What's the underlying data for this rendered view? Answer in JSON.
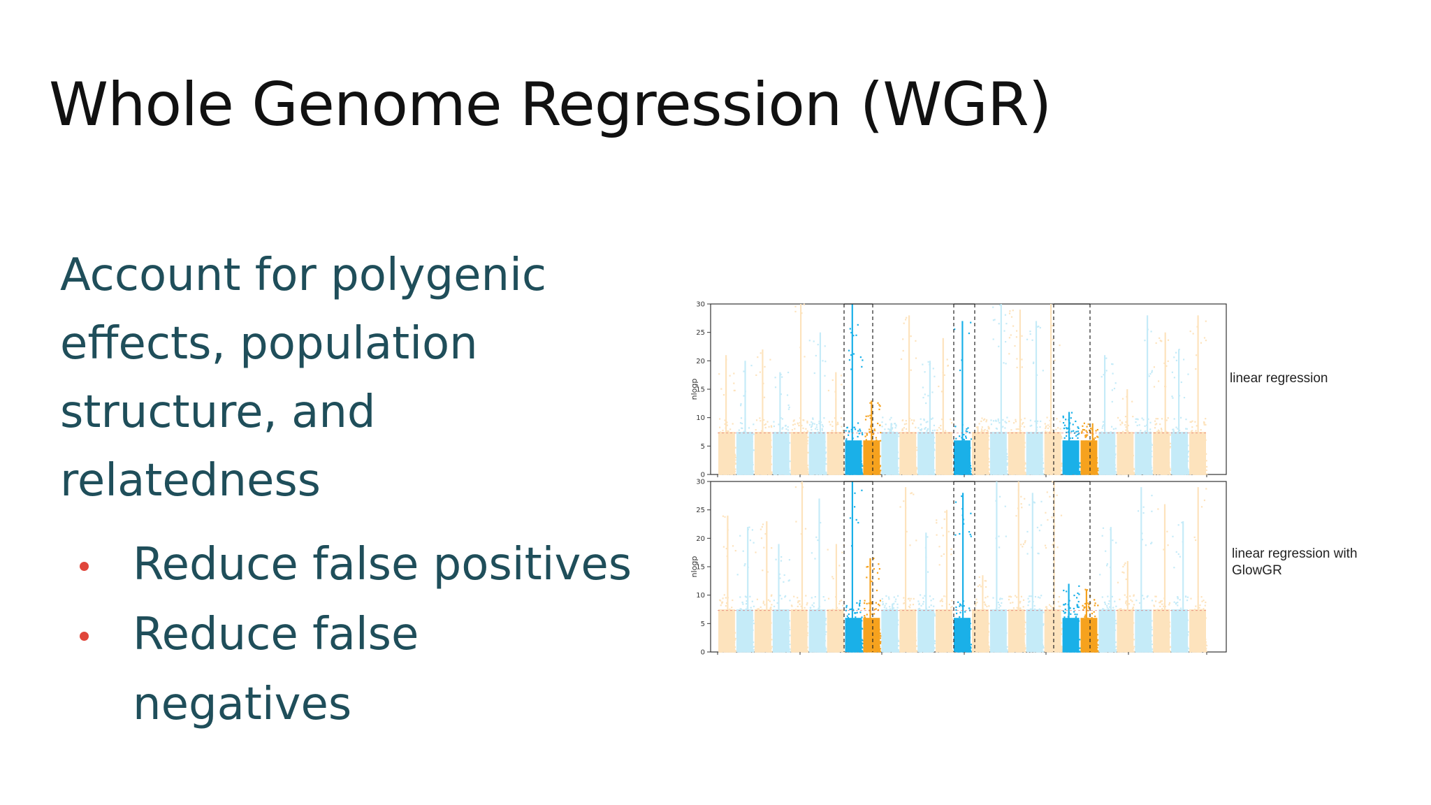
{
  "slide": {
    "title": "Whole Genome Regression (WGR)",
    "body_lines": [
      "Account for polygenic",
      "effects, population",
      "structure, and",
      "relatedness"
    ],
    "bullets": [
      {
        "lines": [
          "Reduce false positives"
        ]
      },
      {
        "lines": [
          "Reduce false",
          "negatives"
        ]
      }
    ],
    "bullet_color": "#e0453a",
    "text_color": "#1f4e5a"
  },
  "chart_data": [
    {
      "type": "scatter",
      "subtype": "manhattan",
      "panel_label": "linear regression",
      "ylabel": "nlogp",
      "ylim": [
        0,
        30
      ],
      "yticks": [
        0,
        5,
        10,
        15,
        20,
        25,
        30
      ],
      "significance_threshold": 7.3,
      "colors": {
        "odd": "#f6a21e",
        "even": "#1ab0e8",
        "faded_odd": "#fde3bd",
        "faded_even": "#c5ebf8"
      },
      "highlighted_regions": 3,
      "series": [
        {
          "name": "chromosome peaks",
          "values": [
            21,
            20,
            22,
            18,
            30,
            25,
            18,
            30,
            13,
            9,
            28,
            20,
            24,
            27,
            8.5,
            30,
            29,
            27,
            30,
            11,
            9,
            21,
            15,
            28,
            25,
            22,
            28
          ]
        }
      ]
    },
    {
      "type": "scatter",
      "subtype": "manhattan",
      "panel_label": "linear regression with GlowGR",
      "ylabel": "nlogp",
      "ylim": [
        0,
        30
      ],
      "yticks": [
        0,
        5,
        10,
        15,
        20,
        25,
        30
      ],
      "significance_threshold": 7.3,
      "colors": {
        "odd": "#f6a21e",
        "even": "#1ab0e8",
        "faded_odd": "#fde3bd",
        "faded_even": "#c5ebf8"
      },
      "highlighted_regions": 3,
      "series": [
        {
          "name": "chromosome peaks",
          "values": [
            24,
            22,
            23,
            19,
            30,
            27,
            19,
            30,
            16.5,
            8.5,
            29,
            21,
            25,
            28,
            13.5,
            30,
            30,
            28,
            30,
            12,
            11,
            22,
            16,
            29,
            26,
            23,
            29
          ]
        }
      ]
    }
  ]
}
